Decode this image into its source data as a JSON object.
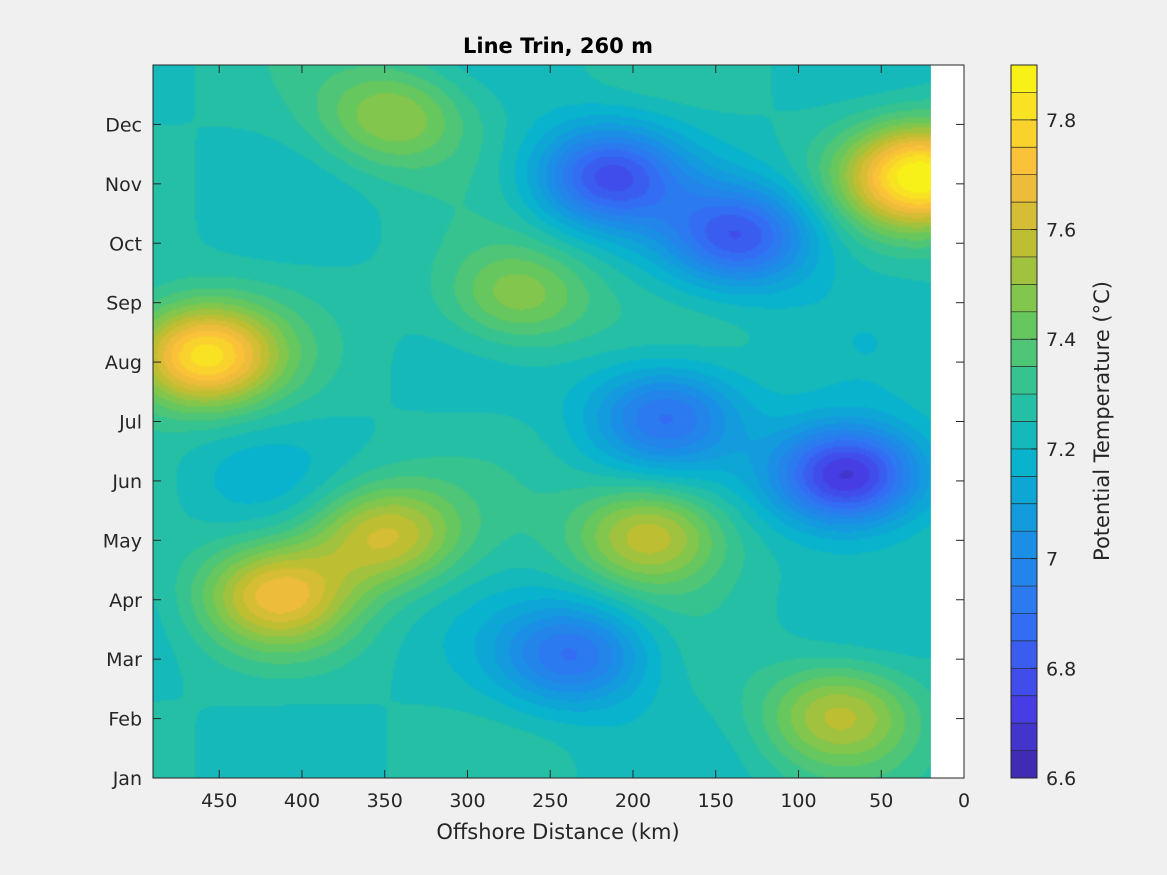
{
  "chart_data": {
    "type": "heatmap",
    "subtype": "filled-contour",
    "title": "Line Trin, 260 m",
    "xlabel": "Offshore Distance (km)",
    "ylabel": "",
    "x_direction": "reversed",
    "xlim": [
      0,
      490
    ],
    "x_data_extent": [
      20,
      490
    ],
    "x_ticks": [
      450,
      400,
      350,
      300,
      250,
      200,
      150,
      100,
      50,
      0
    ],
    "y_categories": [
      "Jan",
      "Feb",
      "Mar",
      "Apr",
      "May",
      "Jun",
      "Jul",
      "Aug",
      "Sep",
      "Oct",
      "Nov",
      "Dec"
    ],
    "colorbar": {
      "label": "Potential Temperature (°C)",
      "range": [
        6.6,
        7.9
      ],
      "ticks": [
        6.6,
        6.8,
        7.0,
        7.2,
        7.4,
        7.6,
        7.8
      ],
      "tick_labels": [
        "6.6",
        "6.8",
        "7",
        "7.2",
        "7.4",
        "7.6",
        "7.8"
      ],
      "levels": 26,
      "colormap": "parula"
    },
    "features": [
      {
        "x": 460,
        "month": "Aug",
        "value": 7.82,
        "note": "warm core"
      },
      {
        "x": 415,
        "month": "Apr",
        "value": 7.65
      },
      {
        "x": 350,
        "month": "May",
        "value": 7.6
      },
      {
        "x": 190,
        "month": "May",
        "value": 7.6
      },
      {
        "x": 25,
        "month": "Nov",
        "value": 7.88
      },
      {
        "x": 70,
        "month": "Jun",
        "value": 6.65,
        "note": "cold core"
      },
      {
        "x": 135,
        "month": "Oct",
        "value": 6.82
      },
      {
        "x": 215,
        "month": "Nov",
        "value": 6.8
      },
      {
        "x": 235,
        "month": "Mar",
        "value": 6.9
      },
      {
        "x": 75,
        "month": "Feb",
        "value": 7.55
      },
      {
        "x": 270,
        "month": "Sep",
        "value": 7.5
      },
      {
        "x": 345,
        "month": "Dec",
        "value": 7.5
      },
      {
        "x": 180,
        "month": "Jul",
        "value": 6.9
      },
      {
        "x": 430,
        "month": "Jun",
        "value": 7.2
      }
    ]
  },
  "colors": {
    "figure_background": "#f0f0f0",
    "axes_background": "#ffffff",
    "axis_color": "#262626"
  }
}
